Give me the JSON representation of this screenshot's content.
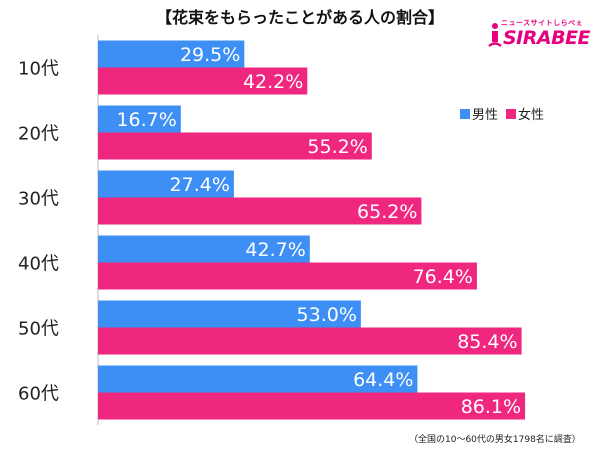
{
  "title": "【花束をもらったことがある人の割合】",
  "logo": {
    "tagline": "ニュースサイトしらべぇ",
    "wordmark": "SIRABEE"
  },
  "footnote": "（全国の10〜60代の男女1798名に調査）",
  "colors": {
    "male": "#3d8ff5",
    "female": "#f0277f",
    "axis": "#bbbbbb"
  },
  "chart_data": {
    "type": "bar",
    "orientation": "horizontal",
    "categories": [
      "10代",
      "20代",
      "30代",
      "40代",
      "50代",
      "60代"
    ],
    "series": [
      {
        "name": "男性",
        "values": [
          29.5,
          16.7,
          27.4,
          42.7,
          53.0,
          64.4
        ],
        "value_labels": [
          "29.5%",
          "16.7%",
          "27.4%",
          "42.7%",
          "53.0%",
          "64.4%"
        ]
      },
      {
        "name": "女性",
        "values": [
          42.2,
          55.2,
          65.2,
          76.4,
          85.4,
          86.1
        ],
        "value_labels": [
          "42.2%",
          "55.2%",
          "65.2%",
          "76.4%",
          "85.4%",
          "86.1%"
        ]
      }
    ],
    "xlim": [
      0,
      100
    ],
    "legend_position": "top-right",
    "grid": false
  }
}
